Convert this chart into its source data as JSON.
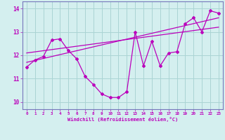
{
  "xlabel": "Windchill (Refroidissement éolien,°C)",
  "bg_color": "#d4efef",
  "grid_color": "#aad4d4",
  "line_color": "#bb00bb",
  "spine_color": "#7777bb",
  "xlim": [
    -0.5,
    23.5
  ],
  "ylim": [
    9.7,
    14.3
  ],
  "xticks": [
    0,
    1,
    2,
    3,
    4,
    5,
    6,
    7,
    8,
    9,
    10,
    11,
    12,
    13,
    14,
    15,
    16,
    17,
    18,
    19,
    20,
    21,
    22,
    23
  ],
  "yticks": [
    10,
    11,
    12,
    13,
    14
  ],
  "data_x": [
    0,
    1,
    2,
    3,
    4,
    5,
    6,
    7,
    8,
    9,
    10,
    11,
    12,
    13,
    14,
    15,
    16,
    17,
    18,
    19,
    20,
    21,
    22,
    23
  ],
  "data_y": [
    11.5,
    11.8,
    11.95,
    12.65,
    12.7,
    12.2,
    11.85,
    11.1,
    10.75,
    10.35,
    10.2,
    10.2,
    10.45,
    13.0,
    11.55,
    12.6,
    11.55,
    12.1,
    12.15,
    13.35,
    13.6,
    13.0,
    13.9,
    13.8
  ],
  "trend1_x": [
    0,
    23
  ],
  "trend1_y": [
    11.7,
    13.6
  ],
  "trend2_x": [
    0,
    23
  ],
  "trend2_y": [
    12.1,
    13.2
  ]
}
